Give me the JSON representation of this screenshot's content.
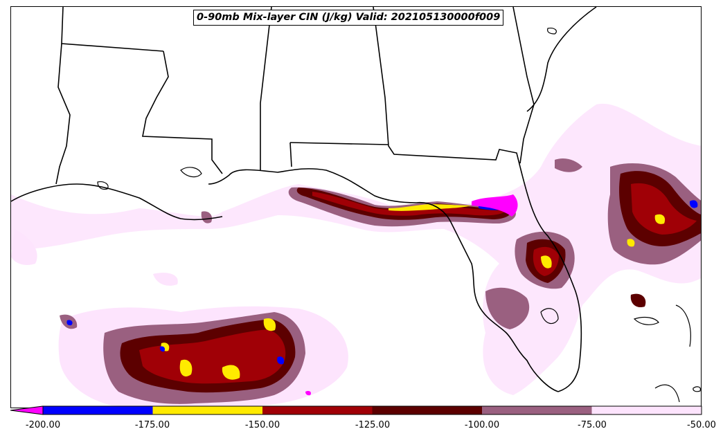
{
  "title": "0-90mb Mix-layer CIN (J/kg) Valid: 202105130000f009",
  "colorbar": {
    "ticks": [
      "-200.00",
      "-175.00",
      "-150.00",
      "-125.00",
      "-100.00",
      "-75.00",
      "-50.00"
    ],
    "under_color": "#ff00ff",
    "bins": [
      {
        "from": -200,
        "to": -175,
        "color": "#0000ff"
      },
      {
        "from": -175,
        "to": -150,
        "color": "#ffea00"
      },
      {
        "from": -150,
        "to": -125,
        "color": "#a00006"
      },
      {
        "from": -125,
        "to": -100,
        "color": "#5c0000"
      },
      {
        "from": -100,
        "to": -75,
        "color": "#9a6080"
      },
      {
        "from": -75,
        "to": -50,
        "color": "#fde4fd"
      }
    ]
  }
}
